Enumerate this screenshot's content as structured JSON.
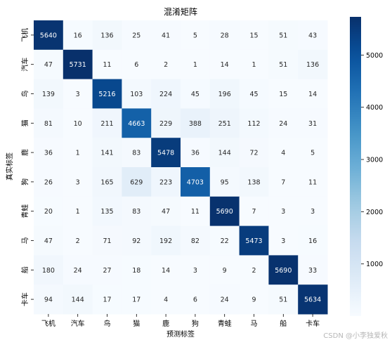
{
  "chart_data": {
    "type": "heatmap",
    "title": "混淆矩阵",
    "xlabel": "预测标签",
    "ylabel": "真实标签",
    "x_categories": [
      "飞机",
      "汽车",
      "鸟",
      "猫",
      "鹿",
      "狗",
      "青蛙",
      "马",
      "船",
      "卡车"
    ],
    "y_categories": [
      "飞机",
      "汽车",
      "鸟",
      "猫",
      "鹿",
      "狗",
      "青蛙",
      "马",
      "船",
      "卡车"
    ],
    "values": [
      [
        5640,
        16,
        136,
        25,
        41,
        5,
        28,
        15,
        51,
        43
      ],
      [
        47,
        5731,
        11,
        6,
        2,
        1,
        14,
        1,
        51,
        136
      ],
      [
        139,
        3,
        5216,
        103,
        224,
        45,
        196,
        45,
        15,
        14
      ],
      [
        81,
        10,
        211,
        4663,
        229,
        388,
        251,
        112,
        24,
        31
      ],
      [
        36,
        1,
        141,
        83,
        5478,
        36,
        144,
        72,
        4,
        5
      ],
      [
        26,
        3,
        165,
        629,
        223,
        4703,
        95,
        138,
        7,
        11
      ],
      [
        20,
        1,
        135,
        83,
        47,
        11,
        5690,
        7,
        3,
        3
      ],
      [
        47,
        2,
        71,
        92,
        192,
        82,
        22,
        5473,
        3,
        16
      ],
      [
        180,
        24,
        27,
        18,
        14,
        3,
        9,
        2,
        5690,
        33
      ],
      [
        94,
        144,
        17,
        17,
        4,
        6,
        24,
        9,
        51,
        5634
      ]
    ],
    "colormap": "Blues",
    "color_range": [
      1,
      5731
    ],
    "colorbar_ticks": [
      1000,
      2000,
      3000,
      4000,
      5000
    ]
  },
  "watermark": "CSDN @小李独爱秋"
}
